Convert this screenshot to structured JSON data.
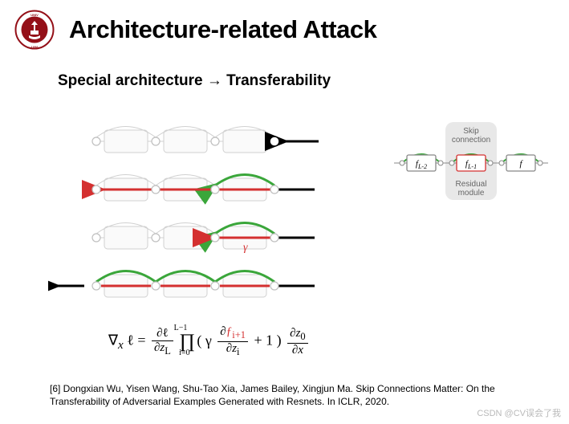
{
  "header": {
    "title": "Architecture-related Attack",
    "logo_color": "#941018",
    "logo_ring_color": "#941018",
    "logo_text_top": "UNIVERSITY"
  },
  "subtitle": "Special architecture → Transferability",
  "diagram_rows": {
    "colors": {
      "node_stroke": "#bfbfbf",
      "node_fill": "#ffffff",
      "block_stroke": "#d0d0d0",
      "block_fill": "#fafafa",
      "skip_arc": "#3aa63a",
      "straight_arrow": "#d43030",
      "active_arrow": "#000000",
      "gamma": "#d43030"
    },
    "block_w": 54,
    "block_h": 28,
    "node_r": 5,
    "arc_height": 24,
    "row_spacing": 60,
    "rows": [
      {
        "arcs": "gray",
        "straight": "none",
        "final_arrow": true,
        "gamma": false
      },
      {
        "arcs": "green_last",
        "straight": "red_full",
        "final_arrow": false,
        "gamma": false
      },
      {
        "arcs": "green_last",
        "straight": "red_half",
        "final_arrow": false,
        "gamma": true
      },
      {
        "arcs": "green_all",
        "straight": "red_segments",
        "final_arrow": false,
        "gamma": false,
        "left_arrow": true
      }
    ],
    "gamma_label": "γ"
  },
  "side": {
    "bg": "#e8e8e8",
    "labels": {
      "top": "Skip",
      "top2": "connection",
      "bottom": "Residual",
      "bottom2": "module"
    },
    "blocks": [
      "f_{L-2}",
      "f_{L-1}",
      "f_L"
    ],
    "highlight_idx": 1,
    "block_fill": "#ffffff",
    "block_stroke": "#888888",
    "highlight_stroke": "#d43030",
    "arc_color": "#3aa63a",
    "line_color": "#888888",
    "node_stroke": "#888888",
    "label_color": "#666666"
  },
  "formula": "∇<sub><i>x</i></sub> ℓ = <span class=\"frac\"><span>∂ℓ</span><span>∂<i>z</i><sub>L</sub></span></span> <span style=\"font-size:24px;position:relative;top:2px\">∏</span><sub style=\"position:relative;left:-20px;top:8px;font-size:10px\">i=0</sub><sup style=\"position:relative;left:-40px;top:-12px;font-size:10px\">L−1</sup><span style=\"margin-left:-28px\">( γ </span><span class=\"frac\"><span>∂<span style=\"color:#d43030\">ƒ<sub>i+1</sub></span></span><span>∂<i>z</i><sub>i</sub></span></span> + 1 ) <span class=\"frac\"><span>∂<i>z</i><sub>0</sub></span><span>∂<i>x</i></span></span>",
  "citation": "[6] Dongxian Wu, Yisen Wang, Shu-Tao Xia, James Bailey, Xingjun Ma. Skip Connections Matter: On the Transferability of Adversarial Examples Generated with Resnets. In ICLR, 2020.",
  "watermark": "CSDN @CV误会了我"
}
